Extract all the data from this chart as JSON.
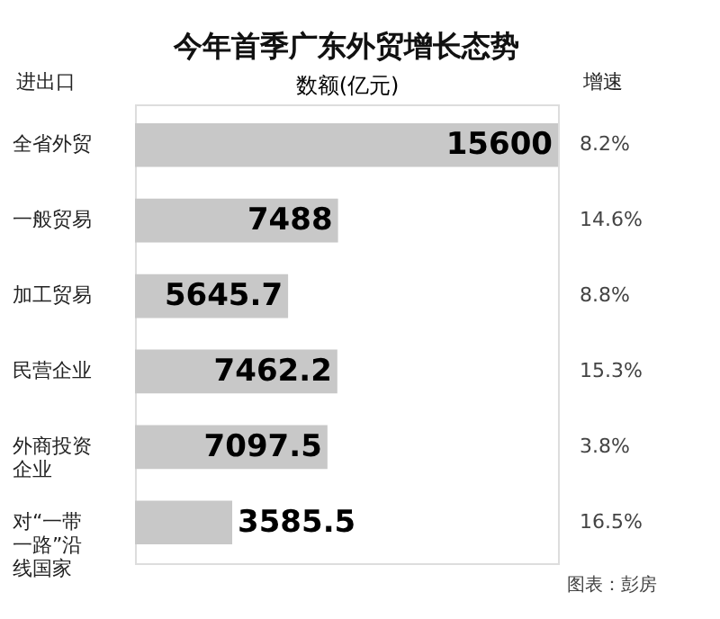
{
  "chart_data": {
    "type": "bar",
    "orientation": "horizontal",
    "title": "今年首季广东外贸增长态势",
    "xlabel": "数额(亿元)",
    "ylabel": "进出口",
    "y2label": "增速",
    "categories": [
      "全省外贸",
      "一般贸易",
      "加工贸易",
      "民营企业",
      "外商投资企业",
      "对“一带一路”沿线国家"
    ],
    "series": [
      {
        "color": "#c8c8c8",
        "values": [
          15600,
          7488,
          5645.7,
          7462.2,
          7097.5,
          3585.5
        ]
      }
    ],
    "data_labels": true,
    "annotations": [
      "8.2%",
      "14.6%",
      "8.8%",
      "15.3%",
      "3.8%",
      "16.5%",
      "图表：彭房"
    ]
  }
}
